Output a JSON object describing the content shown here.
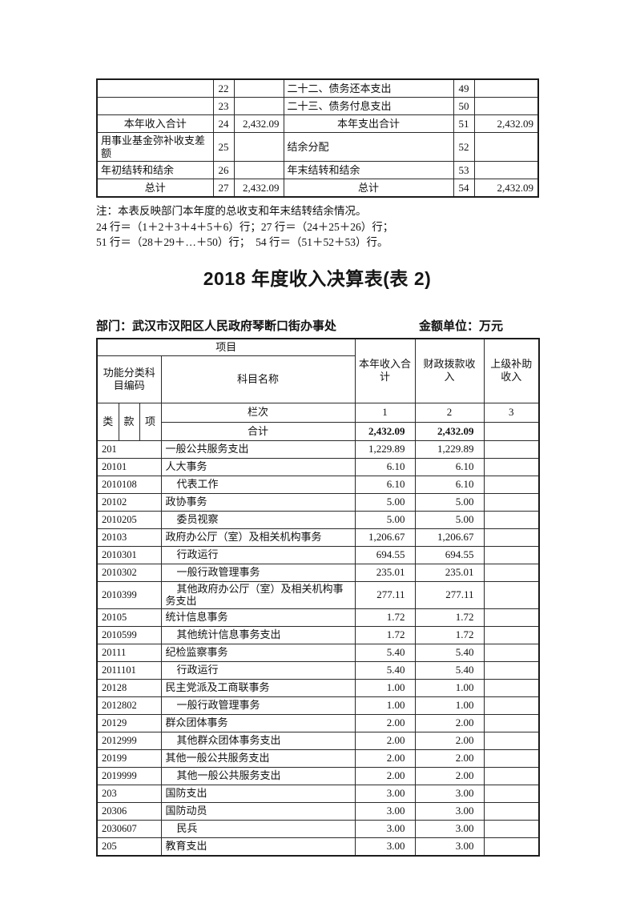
{
  "title": "2018 年度收入决算表(表 2)",
  "meta": {
    "department": "部门：武汉市汉阳区人民政府琴断口街办事处",
    "unit": "金额单位：万元"
  },
  "notes": {
    "line1": "注：本表反映部门本年度的总收支和年末结转结余情况。",
    "line2": "24 行＝（1＋2＋3＋4＋5＋6）行；27 行＝（24＋25＋26）行；",
    "line3": "51 行＝（28＋29＋…＋50）行；　54 行＝（51＋52＋53）行。"
  },
  "summary_table": {
    "rows": [
      {
        "label": "",
        "num": "22",
        "val": "",
        "label2": "二十二、债务还本支出",
        "num2": "49",
        "val2": "",
        "align": "left",
        "tall": false
      },
      {
        "label": "",
        "num": "23",
        "val": "",
        "label2": "二十三、债务付息支出",
        "num2": "50",
        "val2": "",
        "align": "left",
        "tall": false
      },
      {
        "label": "本年收入合计",
        "num": "24",
        "val": "2,432.09",
        "label2": "本年支出合计",
        "num2": "51",
        "val2": "2,432.09",
        "align": "center",
        "tall": false
      },
      {
        "label": "用事业基金弥补收支差额",
        "num": "25",
        "val": "",
        "label2": "结余分配",
        "num2": "52",
        "val2": "",
        "align": "left",
        "tall": true
      },
      {
        "label": "年初结转和结余",
        "num": "26",
        "val": "",
        "label2": "年末结转和结余",
        "num2": "53",
        "val2": "",
        "align": "left",
        "tall": false
      },
      {
        "label": "总计",
        "num": "27",
        "val": "2,432.09",
        "label2": "总计",
        "num2": "54",
        "val2": "2,432.09",
        "align": "center",
        "tall": false
      }
    ]
  },
  "income_table": {
    "header": {
      "item_group": "项目",
      "code_group": "功能分类科\n目编码",
      "subject": "科目名称",
      "col1": "本年收入合\n计",
      "col2": "财政拨款收\n入",
      "col3": "上级补助\n收入",
      "cls": "类",
      "sec": "款",
      "itm": "项",
      "rank": "栏次",
      "rank1": "1",
      "rank2": "2",
      "rank3": "3",
      "total_label": "合计"
    },
    "total": {
      "v1": "2,432.09",
      "v2": "2,432.09",
      "v3": ""
    },
    "rows": [
      {
        "code": "201",
        "name": "一般公共服务支出",
        "indent": false,
        "v1": "1,229.89",
        "v2": "1,229.89",
        "v3": ""
      },
      {
        "code": "20101",
        "name": "人大事务",
        "indent": false,
        "v1": "6.10",
        "v2": "6.10",
        "v3": ""
      },
      {
        "code": "2010108",
        "name": "代表工作",
        "indent": true,
        "v1": "6.10",
        "v2": "6.10",
        "v3": ""
      },
      {
        "code": "20102",
        "name": "政协事务",
        "indent": false,
        "v1": "5.00",
        "v2": "5.00",
        "v3": ""
      },
      {
        "code": "2010205",
        "name": "委员视察",
        "indent": true,
        "v1": "5.00",
        "v2": "5.00",
        "v3": ""
      },
      {
        "code": "20103",
        "name": "政府办公厅（室）及相关机构事务",
        "indent": false,
        "v1": "1,206.67",
        "v2": "1,206.67",
        "v3": ""
      },
      {
        "code": "2010301",
        "name": "行政运行",
        "indent": true,
        "v1": "694.55",
        "v2": "694.55",
        "v3": ""
      },
      {
        "code": "2010302",
        "name": "一般行政管理事务",
        "indent": true,
        "v1": "235.01",
        "v2": "235.01",
        "v3": ""
      },
      {
        "code": "2010399",
        "name": "其他政府办公厅（室）及相关机构事务支出",
        "indent": true,
        "v1": "277.11",
        "v2": "277.11",
        "v3": ""
      },
      {
        "code": "20105",
        "name": "统计信息事务",
        "indent": false,
        "v1": "1.72",
        "v2": "1.72",
        "v3": ""
      },
      {
        "code": "2010599",
        "name": "其他统计信息事务支出",
        "indent": true,
        "v1": "1.72",
        "v2": "1.72",
        "v3": ""
      },
      {
        "code": "20111",
        "name": "纪检监察事务",
        "indent": false,
        "v1": "5.40",
        "v2": "5.40",
        "v3": ""
      },
      {
        "code": "2011101",
        "name": "行政运行",
        "indent": true,
        "v1": "5.40",
        "v2": "5.40",
        "v3": ""
      },
      {
        "code": "20128",
        "name": "民主党派及工商联事务",
        "indent": false,
        "v1": "1.00",
        "v2": "1.00",
        "v3": ""
      },
      {
        "code": "2012802",
        "name": "一般行政管理事务",
        "indent": true,
        "v1": "1.00",
        "v2": "1.00",
        "v3": ""
      },
      {
        "code": "20129",
        "name": "群众团体事务",
        "indent": false,
        "v1": "2.00",
        "v2": "2.00",
        "v3": ""
      },
      {
        "code": "2012999",
        "name": "其他群众团体事务支出",
        "indent": true,
        "v1": "2.00",
        "v2": "2.00",
        "v3": ""
      },
      {
        "code": "20199",
        "name": "其他一般公共服务支出",
        "indent": false,
        "v1": "2.00",
        "v2": "2.00",
        "v3": ""
      },
      {
        "code": "2019999",
        "name": "其他一般公共服务支出",
        "indent": true,
        "v1": "2.00",
        "v2": "2.00",
        "v3": ""
      },
      {
        "code": "203",
        "name": "国防支出",
        "indent": false,
        "v1": "3.00",
        "v2": "3.00",
        "v3": ""
      },
      {
        "code": "20306",
        "name": "国防动员",
        "indent": false,
        "v1": "3.00",
        "v2": "3.00",
        "v3": ""
      },
      {
        "code": "2030607",
        "name": "民兵",
        "indent": true,
        "v1": "3.00",
        "v2": "3.00",
        "v3": ""
      },
      {
        "code": "205",
        "name": "教育支出",
        "indent": false,
        "v1": "3.00",
        "v2": "3.00",
        "v3": ""
      }
    ]
  }
}
